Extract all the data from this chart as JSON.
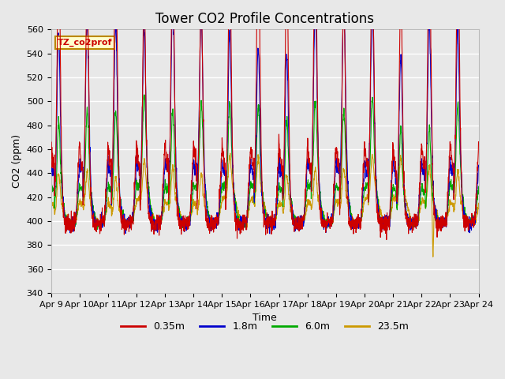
{
  "title": "Tower CO2 Profile Concentrations",
  "xlabel": "Time",
  "ylabel": "CO2 (ppm)",
  "ylim": [
    340,
    560
  ],
  "background_color": "#e8e8e8",
  "plot_bg_color": "#e8e8e8",
  "grid_color": "#ffffff",
  "series": [
    "0.35m",
    "1.8m",
    "6.0m",
    "23.5m"
  ],
  "colors": [
    "#cc0000",
    "#0000cc",
    "#00aa00",
    "#cc9900"
  ],
  "x_tick_labels": [
    "Apr 9",
    "Apr 10",
    "Apr 11",
    "Apr 12",
    "Apr 13",
    "Apr 14",
    "Apr 15",
    "Apr 16",
    "Apr 17",
    "Apr 18",
    "Apr 19",
    "Apr 20",
    "Apr 21",
    "Apr 22",
    "Apr 23",
    "Apr 24"
  ],
  "inset_label": "TZ_co2prof",
  "inset_bg": "#ffffcc",
  "inset_border": "#bb8800",
  "title_fontsize": 12,
  "axis_fontsize": 9,
  "tick_fontsize": 8,
  "linewidth": 0.8,
  "yticks": [
    340,
    360,
    380,
    400,
    420,
    440,
    460,
    480,
    500,
    520,
    540,
    560
  ]
}
